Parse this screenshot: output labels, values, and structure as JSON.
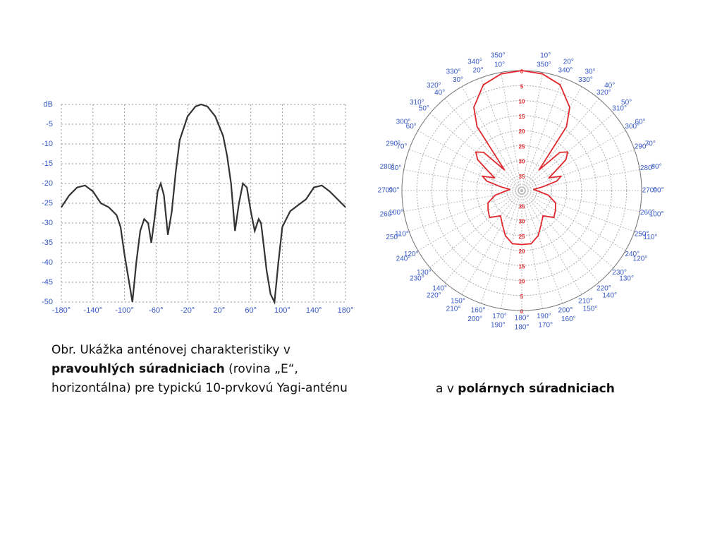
{
  "chart_data": [
    {
      "type": "line",
      "color": "#333333",
      "grid": true,
      "x": [
        -180,
        -170,
        -160,
        -150,
        -140,
        -130,
        -120,
        -110,
        -105,
        -100,
        -95,
        -90,
        -85,
        -80,
        -75,
        -70,
        -66,
        -62,
        -58,
        -54,
        -50,
        -45,
        -40,
        -35,
        -30,
        -20,
        -10,
        -3,
        5,
        15,
        25,
        30,
        35,
        40,
        45,
        50,
        55,
        60,
        65,
        70,
        73,
        76,
        80,
        85,
        90,
        95,
        100,
        110,
        120,
        130,
        140,
        150,
        160,
        170,
        180
      ],
      "values": [
        -26,
        -23,
        -21,
        -20.5,
        -22,
        -25,
        -26,
        -28,
        -31,
        -38,
        -44,
        -50,
        -40,
        -32,
        -29,
        -30,
        -35,
        -29,
        -22,
        -20,
        -23,
        -33,
        -27,
        -17,
        -9,
        -3,
        -0.5,
        0,
        -0.5,
        -3,
        -8,
        -13,
        -20,
        -32,
        -25,
        -20,
        -21,
        -27,
        -32,
        -29,
        -30,
        -35,
        -42,
        -48,
        -50,
        -40,
        -31,
        -27,
        -25.5,
        -24,
        -21,
        -20.5,
        -22,
        -24,
        -26
      ],
      "xlim": [
        -180,
        180
      ],
      "xticks": [
        {
          "value": -180,
          "label": "-180°"
        },
        {
          "value": -140,
          "label": "-140°"
        },
        {
          "value": -100,
          "label": "-100°"
        },
        {
          "value": -60,
          "label": "-60°"
        },
        {
          "value": -20,
          "label": "-20°"
        },
        {
          "value": 20,
          "label": "20°"
        },
        {
          "value": 60,
          "label": "60°"
        },
        {
          "value": 100,
          "label": "100°"
        },
        {
          "value": 140,
          "label": "140°"
        },
        {
          "value": 180,
          "label": "180°"
        }
      ],
      "ylim": [
        -50,
        0
      ],
      "yticks": [
        {
          "value": 0,
          "label": "dB"
        },
        -5,
        -10,
        -15,
        -20,
        -25,
        -30,
        -35,
        -40,
        -45,
        -50
      ]
    },
    {
      "type": "polar",
      "color": "#e0282e",
      "theta": [
        0,
        10,
        20,
        30,
        35,
        40,
        45,
        50,
        55,
        60,
        65,
        70,
        75,
        80,
        85,
        90,
        100,
        110,
        120,
        130,
        140,
        150,
        160,
        170,
        180,
        190,
        200,
        210,
        220,
        230,
        240,
        250,
        260,
        270,
        275,
        280,
        285,
        290,
        295,
        300,
        305,
        310,
        315,
        320,
        325,
        330,
        340,
        350,
        360
      ],
      "values": [
        0,
        0.5,
        2.5,
        8,
        14,
        31,
        22,
        20,
        22,
        27,
        30,
        26,
        28,
        33,
        36,
        35,
        31,
        28,
        27,
        26,
        29,
        27,
        24,
        22,
        22,
        22,
        24,
        27,
        29,
        26,
        27,
        28,
        31,
        35,
        36,
        33,
        28,
        26,
        30,
        27,
        22,
        20,
        22,
        31,
        14,
        8,
        2.5,
        0.5,
        0
      ],
      "rlim": [
        40,
        0
      ],
      "rticks": [
        0,
        5,
        10,
        15,
        20,
        25,
        30,
        35
      ],
      "theta_ticks": [
        {
          "value": 10,
          "label": "10°"
        },
        {
          "value": 20,
          "label": "20°"
        },
        {
          "value": 30,
          "label": "30°"
        },
        {
          "value": 40,
          "label": "40°"
        },
        {
          "value": 50,
          "label": "50°"
        },
        {
          "value": 60,
          "label": "60°"
        },
        {
          "value": 70,
          "label": "70°"
        },
        {
          "value": 80,
          "label": "80°"
        },
        {
          "value": 90,
          "label": "90°"
        },
        {
          "value": 100,
          "label": "100°"
        },
        {
          "value": 110,
          "label": "110°"
        },
        {
          "value": 120,
          "label": "120°"
        },
        {
          "value": 130,
          "label": "130°"
        },
        {
          "value": 140,
          "label": "140°"
        },
        {
          "value": 150,
          "label": "150°"
        },
        {
          "value": 160,
          "label": "160°"
        },
        {
          "value": 170,
          "label": "170°"
        },
        {
          "value": 180,
          "label": "180°"
        },
        {
          "value": 190,
          "label": "190°"
        },
        {
          "value": 200,
          "label": "200°"
        },
        {
          "value": 210,
          "label": "210°"
        },
        {
          "value": 220,
          "label": "220°"
        },
        {
          "value": 230,
          "label": "230°"
        },
        {
          "value": 240,
          "label": "240°"
        },
        {
          "value": 250,
          "label": "250°"
        },
        {
          "value": 260,
          "label": "260°"
        },
        {
          "value": 270,
          "label": "270°"
        },
        {
          "value": 280,
          "label": "280°"
        },
        {
          "value": 290,
          "label": "290°"
        },
        {
          "value": 300,
          "label": "300°"
        },
        {
          "value": 310,
          "label": "310°"
        },
        {
          "value": 320,
          "label": "320°"
        },
        {
          "value": 330,
          "label": "330°"
        },
        {
          "value": 340,
          "label": "340°"
        },
        {
          "value": 350,
          "label": "350°"
        }
      ]
    }
  ],
  "captions": {
    "left": [
      "Obr. Ukážka anténovej charakteristiky v ",
      "pravouhlých súradniciach",
      " (rovina „E“, horizontálna) pre typickú 10-prvkovú Yagi-anténu"
    ],
    "right": [
      "a v ",
      "polárnych súradniciach"
    ]
  }
}
